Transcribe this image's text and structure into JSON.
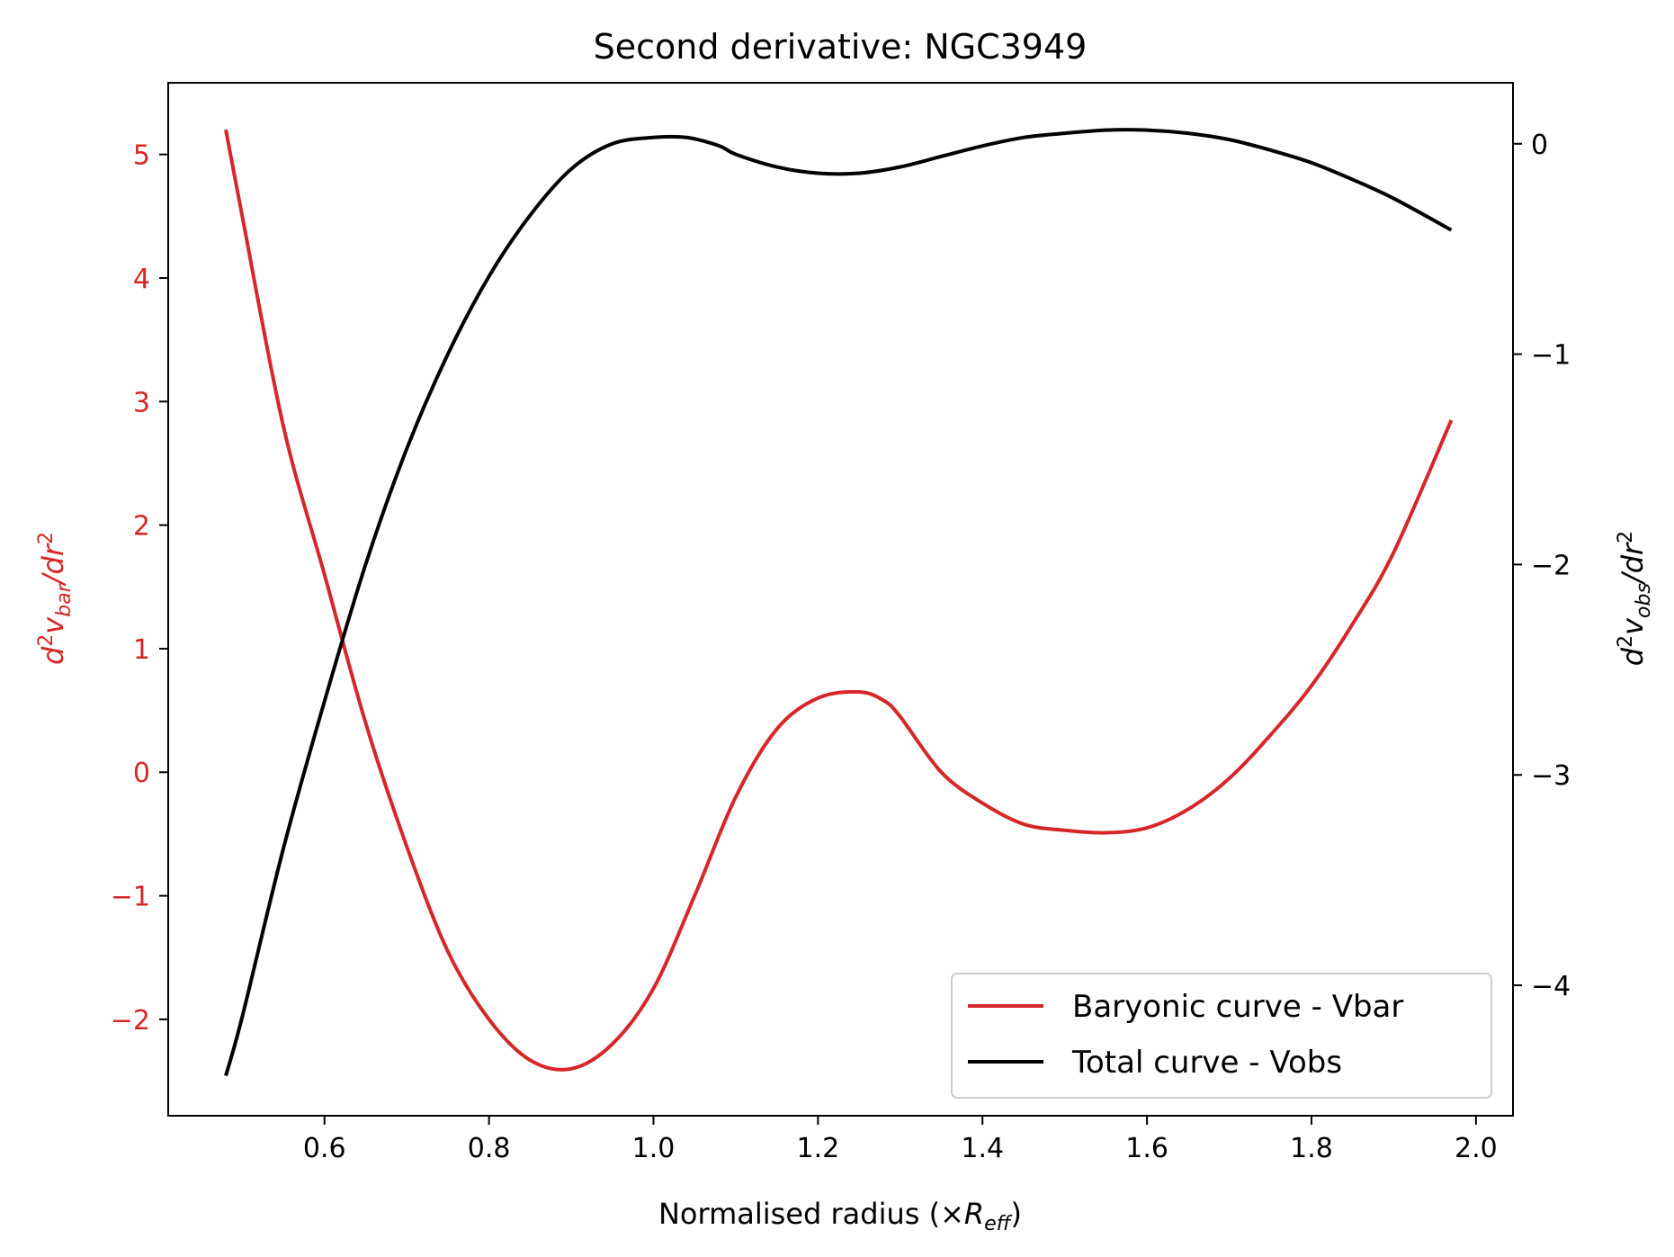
{
  "colors": {
    "baryonic": "#d62728",
    "total": "#000000",
    "axes": "#000000",
    "legend_border": "#cccccc"
  },
  "chart_data": {
    "type": "line",
    "title": "Second derivative: NGC3949",
    "xlabel": {
      "main": "Normalised radius (×",
      "italic": "R",
      "sub": "eff",
      "close": ")"
    },
    "ylabel_left": {
      "d": "d",
      "sup2": "2",
      "v": "v",
      "sub": "bar",
      "slash": "/",
      "dr": "dr",
      "sup2b": "2"
    },
    "ylabel_right": {
      "d": "d",
      "sup2": "2",
      "v": "v",
      "sub": "obs",
      "slash": "/",
      "dr": "dr",
      "sup2b": "2"
    },
    "xlim": [
      0.41,
      2.045
    ],
    "ylim_left": [
      -2.78,
      5.58
    ],
    "ylim_right": [
      -4.62,
      0.29
    ],
    "x_ticks": [
      0.6,
      0.8,
      1.0,
      1.2,
      1.4,
      1.6,
      1.8,
      2.0
    ],
    "x_tick_labels": [
      "0.6",
      "0.8",
      "1.0",
      "1.2",
      "1.4",
      "1.6",
      "1.8",
      "2.0"
    ],
    "y_left_ticks": [
      -2,
      -1,
      0,
      1,
      2,
      3,
      4,
      5
    ],
    "y_left_tick_labels": [
      "−2",
      "−1",
      "0",
      "1",
      "2",
      "3",
      "4",
      "5"
    ],
    "y_right_ticks": [
      -4,
      -3,
      -2,
      -1,
      0
    ],
    "y_right_tick_labels": [
      "−4",
      "−3",
      "−2",
      "−1",
      "0"
    ],
    "legend_position": "lower-right",
    "series": [
      {
        "name": "Baryonic curve - Vbar",
        "axis": "left",
        "x": [
          0.48,
          0.5,
          0.55,
          0.6,
          0.65,
          0.7,
          0.75,
          0.8,
          0.85,
          0.9,
          0.95,
          1.0,
          1.05,
          1.1,
          1.15,
          1.2,
          1.25,
          1.28,
          1.3,
          1.35,
          1.4,
          1.45,
          1.5,
          1.55,
          1.6,
          1.65,
          1.7,
          1.75,
          1.8,
          1.85,
          1.9,
          1.97
        ],
        "y": [
          5.2,
          4.5,
          2.8,
          1.6,
          0.4,
          -0.6,
          -1.45,
          -2.0,
          -2.33,
          -2.4,
          -2.2,
          -1.75,
          -1.0,
          -0.2,
          0.35,
          0.6,
          0.65,
          0.58,
          0.45,
          0.0,
          -0.25,
          -0.42,
          -0.47,
          -0.49,
          -0.45,
          -0.3,
          -0.05,
          0.3,
          0.7,
          1.2,
          1.78,
          2.85
        ]
      },
      {
        "name": "Total curve - Vobs",
        "axis": "right",
        "x": [
          0.48,
          0.5,
          0.55,
          0.6,
          0.65,
          0.7,
          0.75,
          0.8,
          0.85,
          0.9,
          0.95,
          1.0,
          1.04,
          1.08,
          1.1,
          1.15,
          1.2,
          1.25,
          1.3,
          1.35,
          1.4,
          1.45,
          1.5,
          1.55,
          1.6,
          1.65,
          1.7,
          1.75,
          1.8,
          1.85,
          1.9,
          1.97
        ],
        "y": [
          -4.43,
          -4.15,
          -3.35,
          -2.65,
          -2.0,
          -1.45,
          -1.0,
          -0.63,
          -0.34,
          -0.12,
          0.0,
          0.03,
          0.03,
          -0.01,
          -0.05,
          -0.11,
          -0.14,
          -0.14,
          -0.11,
          -0.06,
          -0.01,
          0.03,
          0.05,
          0.065,
          0.065,
          0.05,
          0.02,
          -0.03,
          -0.09,
          -0.17,
          -0.26,
          -0.41
        ]
      }
    ]
  }
}
